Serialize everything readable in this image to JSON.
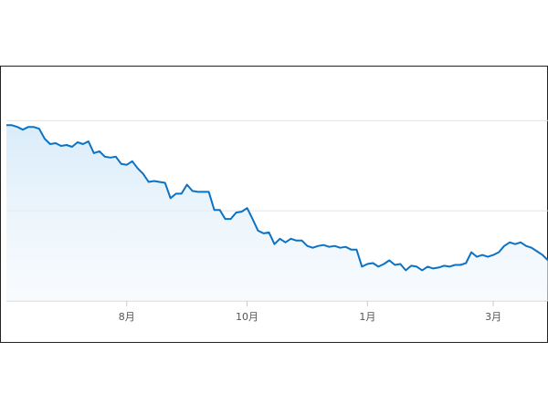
{
  "chart_data": {
    "type": "line",
    "color": "#0b72c4",
    "grid": true,
    "ylim": [
      0,
      2.6
    ],
    "yticks": [
      0,
      1,
      2
    ],
    "categories": [
      null,
      null,
      null,
      null,
      null,
      null,
      null,
      null,
      null,
      null,
      null,
      null,
      null,
      null,
      null,
      null,
      null,
      null,
      null,
      null,
      null,
      null,
      "8月",
      null,
      null,
      null,
      null,
      null,
      null,
      null,
      null,
      null,
      null,
      null,
      null,
      null,
      null,
      null,
      null,
      null,
      null,
      null,
      null,
      null,
      "10月",
      null,
      null,
      null,
      null,
      null,
      null,
      null,
      null,
      null,
      null,
      null,
      null,
      null,
      null,
      null,
      null,
      null,
      null,
      null,
      null,
      null,
      "1月",
      null,
      null,
      null,
      null,
      null,
      null,
      null,
      null,
      null,
      null,
      null,
      null,
      null,
      null,
      null,
      null,
      null,
      null,
      null,
      null,
      null,
      null,
      "3月",
      null,
      null,
      null,
      null,
      null,
      null,
      null,
      null,
      null,
      null
    ],
    "values": [
      1.95,
      1.95,
      1.93,
      1.9,
      1.93,
      1.93,
      1.91,
      1.8,
      1.74,
      1.75,
      1.72,
      1.73,
      1.71,
      1.76,
      1.74,
      1.77,
      1.64,
      1.66,
      1.6,
      1.59,
      1.6,
      1.52,
      1.51,
      1.55,
      1.47,
      1.41,
      1.32,
      1.33,
      1.32,
      1.31,
      1.14,
      1.19,
      1.19,
      1.29,
      1.22,
      1.21,
      1.21,
      1.21,
      1.01,
      1.01,
      0.91,
      0.91,
      0.98,
      0.99,
      1.03,
      0.91,
      0.78,
      0.75,
      0.76,
      0.63,
      0.69,
      0.65,
      0.69,
      0.67,
      0.67,
      0.61,
      0.59,
      0.61,
      0.62,
      0.6,
      0.61,
      0.59,
      0.6,
      0.57,
      0.57,
      0.38,
      0.41,
      0.42,
      0.38,
      0.41,
      0.45,
      0.4,
      0.41,
      0.34,
      0.39,
      0.38,
      0.34,
      0.38,
      0.36,
      0.37,
      0.39,
      0.38,
      0.4,
      0.4,
      0.42,
      0.54,
      0.49,
      0.51,
      0.49,
      0.51,
      0.54,
      0.61,
      0.65,
      0.63,
      0.65,
      0.61,
      0.59,
      0.55,
      0.51,
      0.45
    ]
  }
}
